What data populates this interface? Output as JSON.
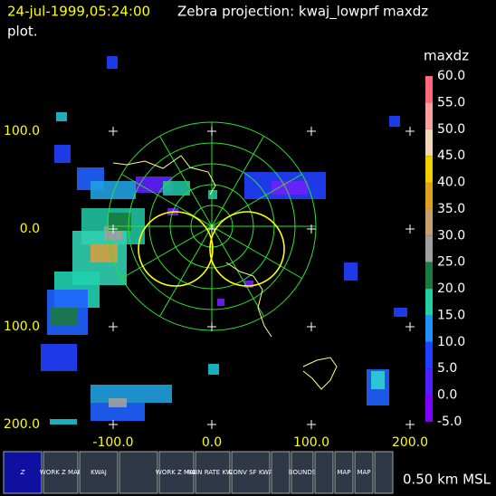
{
  "header": {
    "timestamp": "24-jul-1999,05:24:00",
    "title": "Zebra projection: kwaj_lowprf maxdz",
    "title_cont": "plot."
  },
  "y_axis_labels": [
    "100.0",
    "0.0",
    "100.0",
    "200.0"
  ],
  "x_axis_labels": [
    "-100.0",
    "0.0",
    "100.0",
    "200.0"
  ],
  "colorbar": {
    "title": "maxdz",
    "labels": [
      "60.0",
      "55.0",
      "50.0",
      "45.0",
      "40.0",
      "35.0",
      "30.0",
      "25.0",
      "20.0",
      "15.0",
      "10.0",
      "5.0",
      "0.0",
      "-5.0"
    ]
  },
  "toolbar": [
    {
      "label": "Z"
    },
    {
      "label": "WORK Z MAP"
    },
    {
      "label": "KWAJ"
    },
    {
      "label": ""
    },
    {
      "label": "WORK Z MAP"
    },
    {
      "label": "RAIN RATE KWAJ"
    },
    {
      "label": "CONV SF KWA"
    },
    {
      "label": ""
    },
    {
      "label": "BOUNDS"
    },
    {
      "label": ""
    },
    {
      "label": "MAP"
    },
    {
      "label": "MAP"
    },
    {
      "label": ""
    }
  ],
  "footer": "0.50 km MSL"
}
